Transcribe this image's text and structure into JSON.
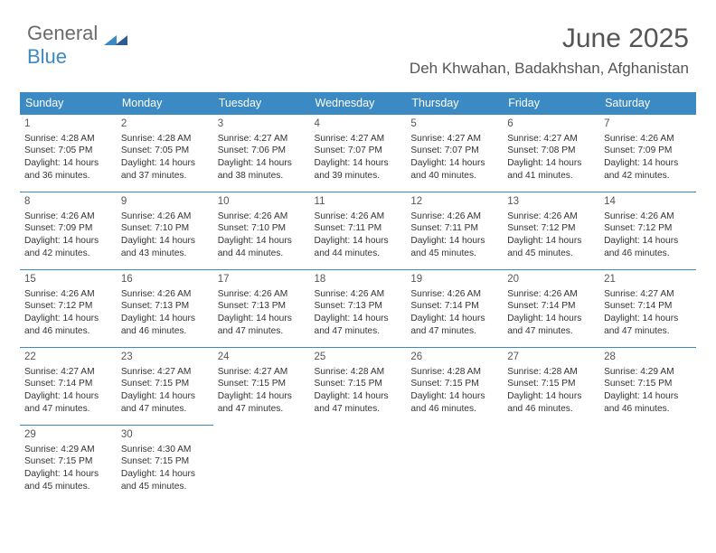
{
  "logo": {
    "text1": "General",
    "text2": "Blue"
  },
  "header": {
    "title": "June 2025",
    "location": "Deh Khwahan, Badakhshan, Afghanistan"
  },
  "colors": {
    "header_bg": "#3b8ac4",
    "header_text": "#ffffff",
    "rule": "#3b8ac4",
    "body_text": "#333333",
    "title_text": "#555555",
    "logo_gray": "#6b6b6b",
    "logo_blue": "#3b8ac4",
    "logo_blue_dark": "#2b5e8e",
    "background": "#ffffff"
  },
  "weekdays": [
    "Sunday",
    "Monday",
    "Tuesday",
    "Wednesday",
    "Thursday",
    "Friday",
    "Saturday"
  ],
  "days": [
    {
      "n": 1,
      "sr": "4:28 AM",
      "ss": "7:05 PM",
      "dl": "14 hours and 36 minutes."
    },
    {
      "n": 2,
      "sr": "4:28 AM",
      "ss": "7:05 PM",
      "dl": "14 hours and 37 minutes."
    },
    {
      "n": 3,
      "sr": "4:27 AM",
      "ss": "7:06 PM",
      "dl": "14 hours and 38 minutes."
    },
    {
      "n": 4,
      "sr": "4:27 AM",
      "ss": "7:07 PM",
      "dl": "14 hours and 39 minutes."
    },
    {
      "n": 5,
      "sr": "4:27 AM",
      "ss": "7:07 PM",
      "dl": "14 hours and 40 minutes."
    },
    {
      "n": 6,
      "sr": "4:27 AM",
      "ss": "7:08 PM",
      "dl": "14 hours and 41 minutes."
    },
    {
      "n": 7,
      "sr": "4:26 AM",
      "ss": "7:09 PM",
      "dl": "14 hours and 42 minutes."
    },
    {
      "n": 8,
      "sr": "4:26 AM",
      "ss": "7:09 PM",
      "dl": "14 hours and 42 minutes."
    },
    {
      "n": 9,
      "sr": "4:26 AM",
      "ss": "7:10 PM",
      "dl": "14 hours and 43 minutes."
    },
    {
      "n": 10,
      "sr": "4:26 AM",
      "ss": "7:10 PM",
      "dl": "14 hours and 44 minutes."
    },
    {
      "n": 11,
      "sr": "4:26 AM",
      "ss": "7:11 PM",
      "dl": "14 hours and 44 minutes."
    },
    {
      "n": 12,
      "sr": "4:26 AM",
      "ss": "7:11 PM",
      "dl": "14 hours and 45 minutes."
    },
    {
      "n": 13,
      "sr": "4:26 AM",
      "ss": "7:12 PM",
      "dl": "14 hours and 45 minutes."
    },
    {
      "n": 14,
      "sr": "4:26 AM",
      "ss": "7:12 PM",
      "dl": "14 hours and 46 minutes."
    },
    {
      "n": 15,
      "sr": "4:26 AM",
      "ss": "7:12 PM",
      "dl": "14 hours and 46 minutes."
    },
    {
      "n": 16,
      "sr": "4:26 AM",
      "ss": "7:13 PM",
      "dl": "14 hours and 46 minutes."
    },
    {
      "n": 17,
      "sr": "4:26 AM",
      "ss": "7:13 PM",
      "dl": "14 hours and 47 minutes."
    },
    {
      "n": 18,
      "sr": "4:26 AM",
      "ss": "7:13 PM",
      "dl": "14 hours and 47 minutes."
    },
    {
      "n": 19,
      "sr": "4:26 AM",
      "ss": "7:14 PM",
      "dl": "14 hours and 47 minutes."
    },
    {
      "n": 20,
      "sr": "4:26 AM",
      "ss": "7:14 PM",
      "dl": "14 hours and 47 minutes."
    },
    {
      "n": 21,
      "sr": "4:27 AM",
      "ss": "7:14 PM",
      "dl": "14 hours and 47 minutes."
    },
    {
      "n": 22,
      "sr": "4:27 AM",
      "ss": "7:14 PM",
      "dl": "14 hours and 47 minutes."
    },
    {
      "n": 23,
      "sr": "4:27 AM",
      "ss": "7:15 PM",
      "dl": "14 hours and 47 minutes."
    },
    {
      "n": 24,
      "sr": "4:27 AM",
      "ss": "7:15 PM",
      "dl": "14 hours and 47 minutes."
    },
    {
      "n": 25,
      "sr": "4:28 AM",
      "ss": "7:15 PM",
      "dl": "14 hours and 47 minutes."
    },
    {
      "n": 26,
      "sr": "4:28 AM",
      "ss": "7:15 PM",
      "dl": "14 hours and 46 minutes."
    },
    {
      "n": 27,
      "sr": "4:28 AM",
      "ss": "7:15 PM",
      "dl": "14 hours and 46 minutes."
    },
    {
      "n": 28,
      "sr": "4:29 AM",
      "ss": "7:15 PM",
      "dl": "14 hours and 46 minutes."
    },
    {
      "n": 29,
      "sr": "4:29 AM",
      "ss": "7:15 PM",
      "dl": "14 hours and 45 minutes."
    },
    {
      "n": 30,
      "sr": "4:30 AM",
      "ss": "7:15 PM",
      "dl": "14 hours and 45 minutes."
    }
  ],
  "labels": {
    "sunrise": "Sunrise:",
    "sunset": "Sunset:",
    "daylight": "Daylight:"
  },
  "layout": {
    "cols": 7,
    "start_col": 0,
    "total_cells": 35
  }
}
